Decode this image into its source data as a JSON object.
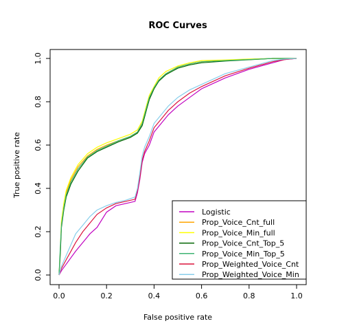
{
  "chart_data": {
    "type": "line",
    "title": "ROC Curves",
    "xlabel": "False positive rate",
    "ylabel": "True positive rate",
    "xlim": [
      0,
      1
    ],
    "ylim": [
      0,
      1
    ],
    "xticks": [
      0.0,
      0.2,
      0.4,
      0.6,
      0.8,
      1.0
    ],
    "yticks": [
      0.0,
      0.2,
      0.4,
      0.6,
      0.8,
      1.0
    ],
    "xtick_labels": [
      "0.0",
      "0.2",
      "0.4",
      "0.6",
      "0.8",
      "1.0"
    ],
    "ytick_labels": [
      "0.0",
      "0.2",
      "0.4",
      "0.6",
      "0.8",
      "1.0"
    ],
    "grid": false,
    "legend_position": "bottom-right",
    "series": [
      {
        "name": "Logistic",
        "color": "#C000C0",
        "x": [
          0.0,
          0.01,
          0.03,
          0.05,
          0.07,
          0.1,
          0.13,
          0.16,
          0.2,
          0.24,
          0.28,
          0.32,
          0.33,
          0.34,
          0.35,
          0.36,
          0.38,
          0.4,
          0.43,
          0.46,
          0.5,
          0.55,
          0.6,
          0.7,
          0.8,
          0.9,
          0.95,
          1.0
        ],
        "y": [
          0.0,
          0.02,
          0.05,
          0.08,
          0.11,
          0.15,
          0.19,
          0.22,
          0.29,
          0.32,
          0.33,
          0.34,
          0.38,
          0.44,
          0.52,
          0.56,
          0.6,
          0.66,
          0.7,
          0.74,
          0.78,
          0.82,
          0.86,
          0.91,
          0.95,
          0.98,
          0.995,
          1.0
        ]
      },
      {
        "name": "Prop_Voice_Cnt_full",
        "color": "#FFA500",
        "x": [
          0.0,
          0.005,
          0.01,
          0.02,
          0.03,
          0.05,
          0.08,
          0.12,
          0.16,
          0.2,
          0.25,
          0.3,
          0.33,
          0.35,
          0.36,
          0.37,
          0.38,
          0.4,
          0.42,
          0.45,
          0.5,
          0.55,
          0.6,
          0.7,
          0.8,
          0.9,
          1.0
        ],
        "y": [
          0.0,
          0.1,
          0.24,
          0.32,
          0.38,
          0.44,
          0.5,
          0.55,
          0.58,
          0.6,
          0.62,
          0.64,
          0.66,
          0.7,
          0.74,
          0.78,
          0.82,
          0.86,
          0.9,
          0.93,
          0.96,
          0.975,
          0.985,
          0.99,
          0.995,
          1.0,
          1.0
        ]
      },
      {
        "name": "Prop_Voice_Min_full",
        "color": "#FFFF00",
        "x": [
          0.0,
          0.005,
          0.01,
          0.02,
          0.03,
          0.05,
          0.08,
          0.12,
          0.16,
          0.2,
          0.25,
          0.3,
          0.33,
          0.35,
          0.36,
          0.37,
          0.38,
          0.4,
          0.42,
          0.45,
          0.5,
          0.55,
          0.6,
          0.7,
          0.8,
          0.9,
          1.0
        ],
        "y": [
          0.0,
          0.11,
          0.25,
          0.33,
          0.39,
          0.45,
          0.51,
          0.56,
          0.59,
          0.61,
          0.63,
          0.65,
          0.67,
          0.71,
          0.75,
          0.79,
          0.83,
          0.87,
          0.91,
          0.94,
          0.965,
          0.98,
          0.99,
          0.993,
          0.997,
          1.0,
          1.0
        ]
      },
      {
        "name": "Prop_Voice_Cnt_Top_5",
        "color": "#006400",
        "x": [
          0.0,
          0.005,
          0.01,
          0.02,
          0.03,
          0.05,
          0.08,
          0.12,
          0.16,
          0.2,
          0.25,
          0.3,
          0.33,
          0.35,
          0.36,
          0.37,
          0.38,
          0.4,
          0.42,
          0.45,
          0.5,
          0.55,
          0.6,
          0.7,
          0.8,
          0.9,
          1.0
        ],
        "y": [
          0.0,
          0.09,
          0.22,
          0.3,
          0.36,
          0.42,
          0.48,
          0.54,
          0.57,
          0.59,
          0.615,
          0.635,
          0.655,
          0.69,
          0.73,
          0.77,
          0.81,
          0.86,
          0.895,
          0.925,
          0.955,
          0.97,
          0.98,
          0.988,
          0.994,
          1.0,
          1.0
        ]
      },
      {
        "name": "Prop_Voice_Min_Top_5",
        "color": "#3CB371",
        "x": [
          0.0,
          0.005,
          0.01,
          0.02,
          0.03,
          0.05,
          0.08,
          0.12,
          0.16,
          0.2,
          0.25,
          0.3,
          0.33,
          0.35,
          0.36,
          0.37,
          0.38,
          0.4,
          0.42,
          0.45,
          0.5,
          0.55,
          0.6,
          0.7,
          0.8,
          0.9,
          1.0
        ],
        "y": [
          0.0,
          0.12,
          0.23,
          0.31,
          0.37,
          0.43,
          0.49,
          0.545,
          0.575,
          0.595,
          0.62,
          0.64,
          0.66,
          0.7,
          0.74,
          0.78,
          0.82,
          0.865,
          0.9,
          0.93,
          0.96,
          0.975,
          0.985,
          0.99,
          0.995,
          1.0,
          1.0
        ]
      },
      {
        "name": "Prop_Weighted_Voice_Cnt",
        "color": "#DC143C",
        "x": [
          0.0,
          0.01,
          0.03,
          0.05,
          0.07,
          0.1,
          0.13,
          0.16,
          0.2,
          0.24,
          0.28,
          0.32,
          0.33,
          0.34,
          0.35,
          0.36,
          0.38,
          0.4,
          0.43,
          0.46,
          0.5,
          0.55,
          0.6,
          0.7,
          0.8,
          0.9,
          0.95,
          1.0
        ],
        "y": [
          0.0,
          0.03,
          0.07,
          0.11,
          0.15,
          0.2,
          0.24,
          0.28,
          0.31,
          0.33,
          0.34,
          0.35,
          0.39,
          0.45,
          0.53,
          0.57,
          0.62,
          0.68,
          0.72,
          0.76,
          0.8,
          0.84,
          0.87,
          0.92,
          0.955,
          0.985,
          0.995,
          1.0
        ]
      },
      {
        "name": "Prop_Weighted_Voice_Min",
        "color": "#87CEEB",
        "x": [
          0.0,
          0.01,
          0.03,
          0.05,
          0.07,
          0.1,
          0.13,
          0.16,
          0.2,
          0.24,
          0.28,
          0.32,
          0.33,
          0.34,
          0.35,
          0.36,
          0.38,
          0.4,
          0.43,
          0.46,
          0.5,
          0.55,
          0.6,
          0.7,
          0.8,
          0.9,
          0.95,
          1.0
        ],
        "y": [
          0.0,
          0.04,
          0.09,
          0.14,
          0.19,
          0.23,
          0.27,
          0.3,
          0.32,
          0.335,
          0.345,
          0.36,
          0.4,
          0.47,
          0.55,
          0.59,
          0.64,
          0.7,
          0.74,
          0.78,
          0.82,
          0.855,
          0.88,
          0.93,
          0.96,
          0.99,
          0.997,
          1.0
        ]
      }
    ]
  }
}
